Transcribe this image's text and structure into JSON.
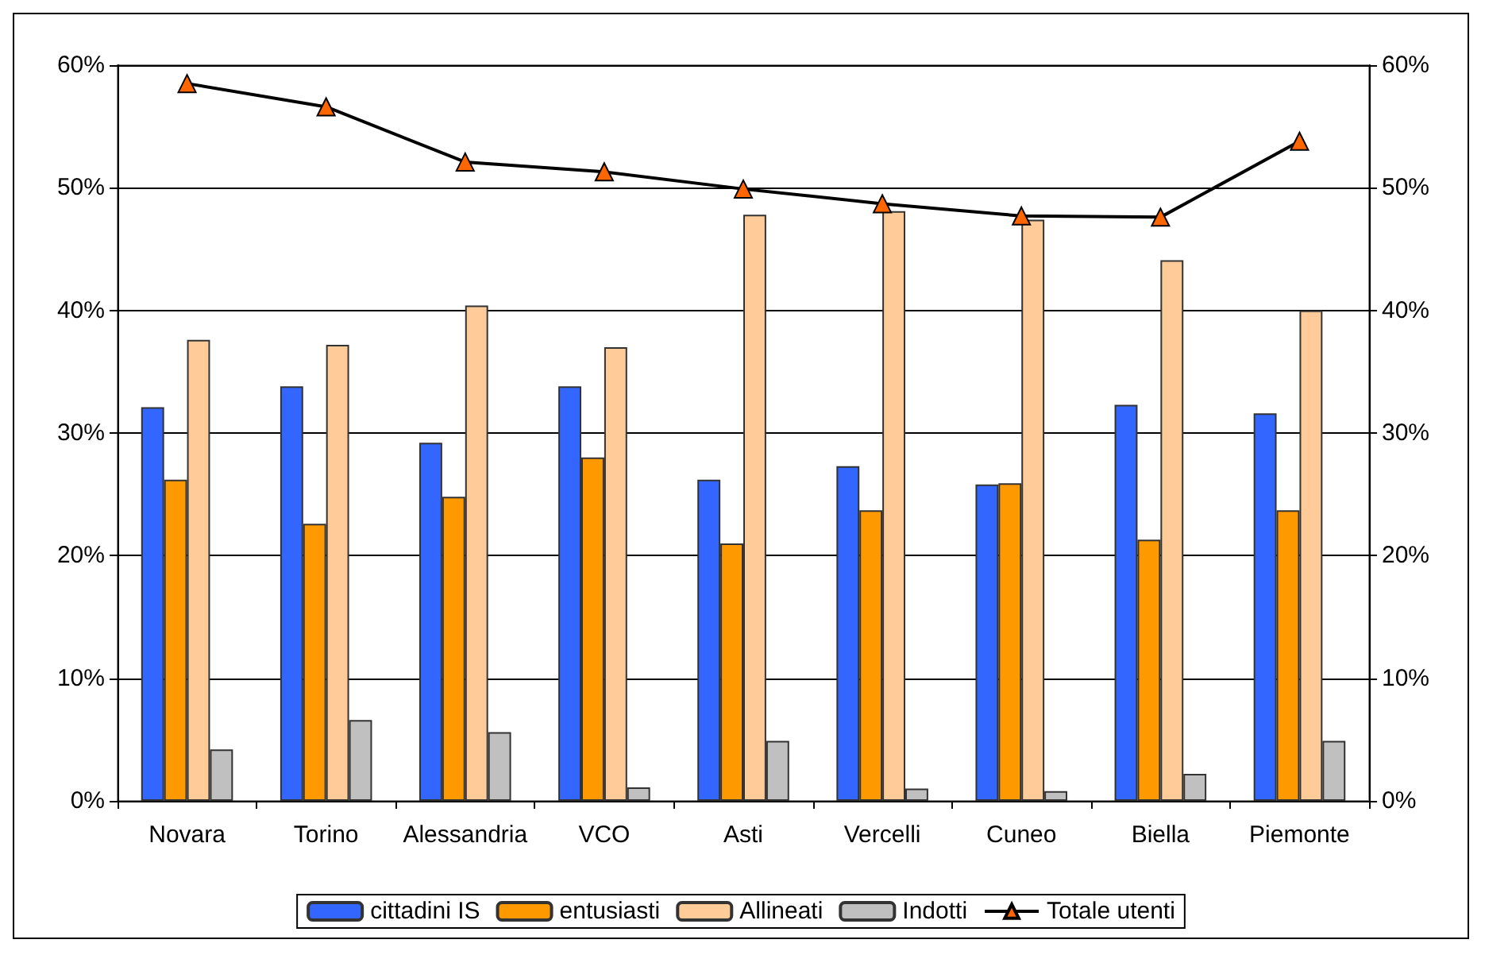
{
  "chart_data": {
    "type": "bar",
    "categories": [
      "Novara",
      "Torino",
      "Alessandria",
      "VCO",
      "Asti",
      "Vercelli",
      "Cuneo",
      "Biella",
      "Piemonte"
    ],
    "series": [
      {
        "name": "cittadini IS",
        "color": "#3366ff",
        "values": [
          32.1,
          33.8,
          29.2,
          33.8,
          26.2,
          27.3,
          25.8,
          32.3,
          31.6
        ]
      },
      {
        "name": "entusiasti",
        "color": "#ff9900",
        "values": [
          26.2,
          22.6,
          24.8,
          28.0,
          21.0,
          23.7,
          25.9,
          21.3,
          23.7
        ]
      },
      {
        "name": "Allineati",
        "color": "#ffcc99",
        "values": [
          37.6,
          37.2,
          40.4,
          37.0,
          47.8,
          48.1,
          47.4,
          44.1,
          40.0
        ]
      },
      {
        "name": "Indotti",
        "color": "#c0c0c0",
        "values": [
          4.2,
          6.6,
          5.6,
          1.1,
          4.9,
          1.0,
          0.8,
          2.2,
          4.9
        ]
      },
      {
        "name": "Totale utenti",
        "type": "line",
        "color": "#000000",
        "colors": [
          "#ff6600",
          "#ff6600",
          "#ff6600",
          "#ff6600",
          "#ff6600",
          "#ff6600",
          "#ff6600",
          "#ff6600",
          "#ff6600"
        ],
        "values": [
          58.5,
          56.6,
          52.1,
          51.3,
          49.9,
          48.7,
          47.7,
          47.6,
          53.8
        ]
      }
    ],
    "ylim": [
      0,
      60
    ],
    "yticks": [
      {
        "value": 0,
        "label": "0%"
      },
      {
        "value": 10,
        "label": "10%"
      },
      {
        "value": 20,
        "label": "20%"
      },
      {
        "value": 30,
        "label": "30%"
      },
      {
        "value": 40,
        "label": "40%"
      },
      {
        "value": 50,
        "label": "50%"
      },
      {
        "value": 60,
        "label": "60%"
      }
    ],
    "y2lim": [
      0,
      60
    ],
    "y2ticks": [
      {
        "value": 0,
        "label": "0%"
      },
      {
        "value": 10,
        "label": "10%"
      },
      {
        "value": 20,
        "label": "20%"
      },
      {
        "value": 30,
        "label": "30%"
      },
      {
        "value": 40,
        "label": "40%"
      },
      {
        "value": 50,
        "label": "50%"
      },
      {
        "value": 60,
        "label": "60%"
      }
    ],
    "grid": "y",
    "legend": "bottom",
    "marker": "triangle",
    "line_style": "solid"
  }
}
